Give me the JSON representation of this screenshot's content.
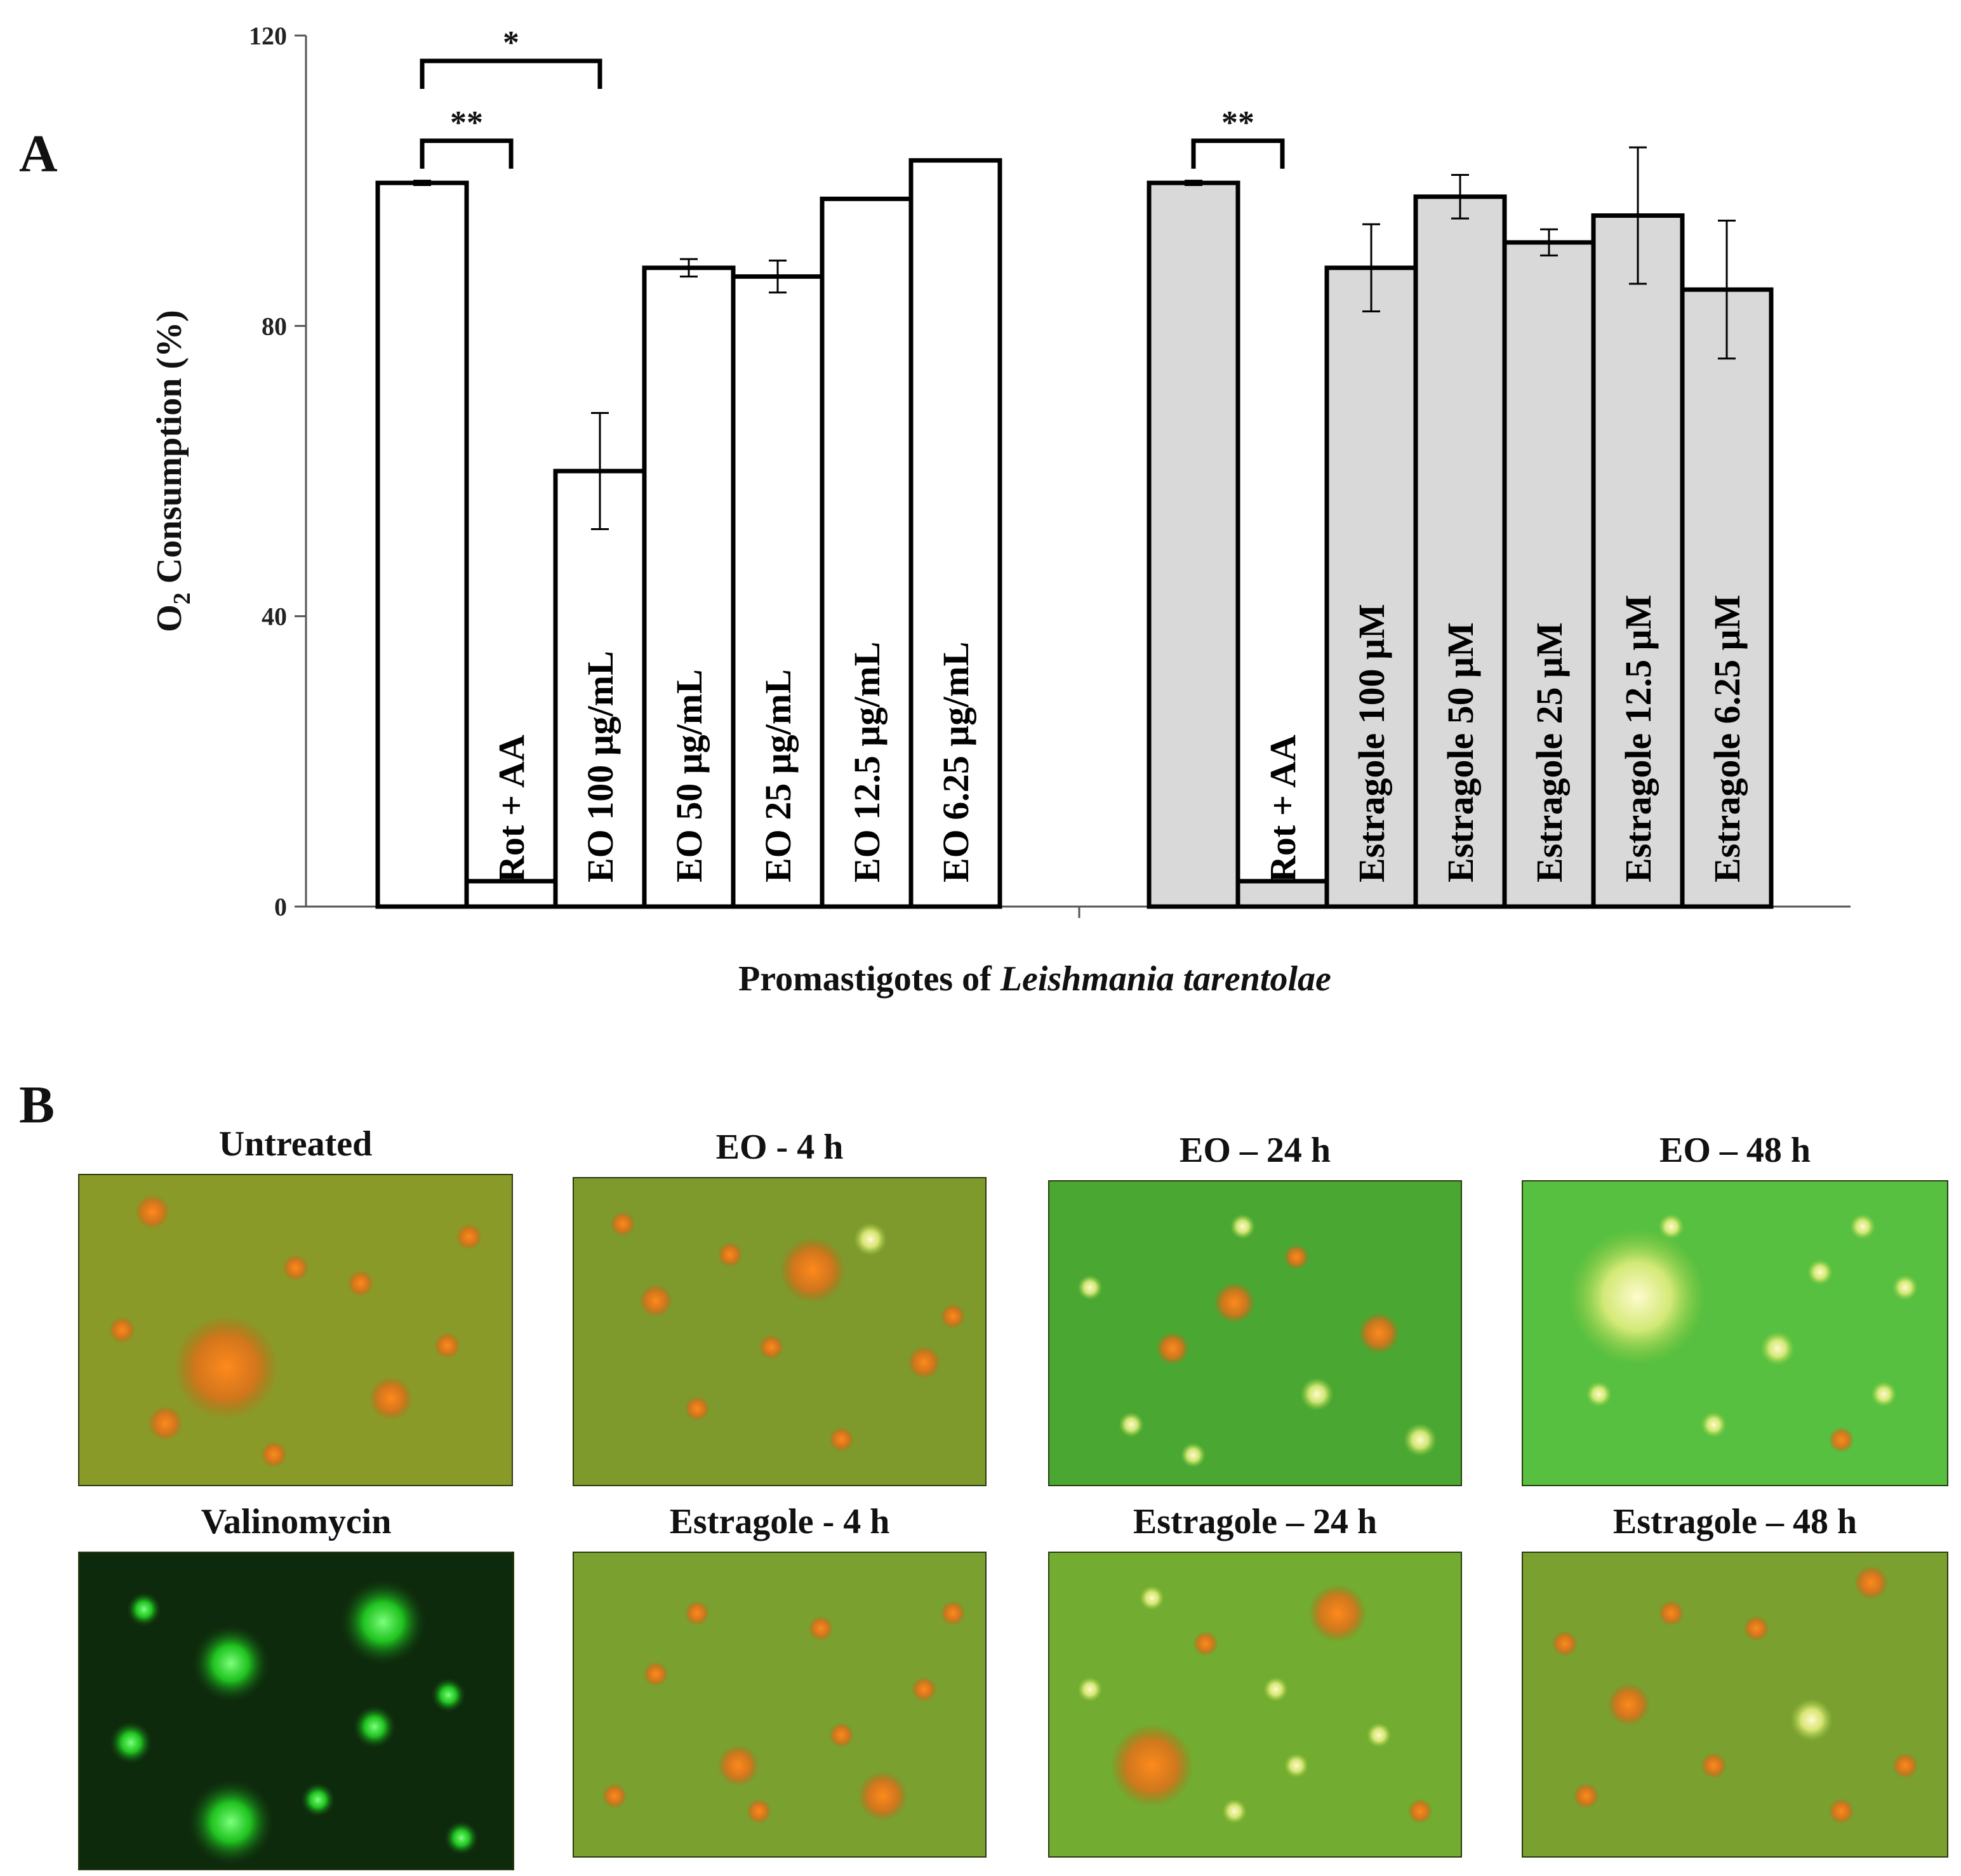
{
  "panel_a": {
    "letter": "A"
  },
  "panel_b": {
    "letter": "B"
  },
  "chart_data": {
    "type": "bar",
    "xlabel_prefix": "Promastigotes of ",
    "xlabel_italic": "Leishmania tarentolae",
    "ylabel_main": "O",
    "ylabel_sub": "2",
    "ylabel_rest": " Consumption (%)",
    "ylim": [
      0,
      120
    ],
    "yticks": [
      "0",
      "40",
      "80",
      "120"
    ],
    "grid": false,
    "groups": [
      {
        "name": "EO",
        "fill": "#ffffff",
        "bars": [
          {
            "label": "",
            "value": 99.7,
            "error": 0.3
          },
          {
            "label": "Rot + AA",
            "value": 3.5,
            "error": 0
          },
          {
            "label": "EO 100 μg/mL",
            "value": 60,
            "error": 8
          },
          {
            "label": "EO 50 μg/mL",
            "value": 88,
            "error": 1.2
          },
          {
            "label": "EO 25 μg/mL",
            "value": 86.8,
            "error": 2.2
          },
          {
            "label": "EO 12.5 μg/mL",
            "value": 97.5,
            "error": 0
          },
          {
            "label": "EO 6.25 μg/mL",
            "value": 102.8,
            "error": 0
          }
        ]
      },
      {
        "name": "Estragole",
        "fill": "#d9d9d9",
        "bars": [
          {
            "label": "",
            "value": 99.7,
            "error": 0.3
          },
          {
            "label": "Rot + AA",
            "value": 3.5,
            "error": 0
          },
          {
            "label": "Estragole 100 μM",
            "value": 88,
            "error": 6
          },
          {
            "label": "Estragole 50 μM",
            "value": 97.8,
            "error": 3
          },
          {
            "label": "Estragole 25 μM",
            "value": 91.5,
            "error": 1.8
          },
          {
            "label": "Estragole 12.5 μM",
            "value": 95.2,
            "error": 9.4
          },
          {
            "label": "Estragole 6.25 μM",
            "value": 85,
            "error": 9.5
          }
        ]
      }
    ],
    "annotations": [
      {
        "text": "*",
        "group": 0,
        "from": 0,
        "to": 2,
        "height": 116.5
      },
      {
        "text": "**",
        "group": 0,
        "from": 0,
        "to": 1,
        "height": 105.5
      },
      {
        "text": "**",
        "group": 1,
        "from": 0,
        "to": 1,
        "height": 105.5
      }
    ]
  },
  "micrographs": [
    {
      "title": "Untreated",
      "tone": "orange-green"
    },
    {
      "title": "EO - 4 h",
      "tone": "olive-orange"
    },
    {
      "title": "EO – 24 h",
      "tone": "green"
    },
    {
      "title": "EO – 48 h",
      "tone": "bright-green"
    },
    {
      "title": "Valinomycin",
      "tone": "dark-green"
    },
    {
      "title": "Estragole - 4 h",
      "tone": "olive-green"
    },
    {
      "title": "Estragole – 24 h",
      "tone": "green-orange"
    },
    {
      "title": "Estragole – 48 h",
      "tone": "olive-green"
    }
  ]
}
